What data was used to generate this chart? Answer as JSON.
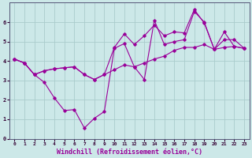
{
  "title": "",
  "xlabel": "Windchill (Refroidissement éolien,°C)",
  "ylabel": "",
  "bg_color": "#cce8e8",
  "line_color": "#990099",
  "grid_color": "#aacccc",
  "xlim": [
    -0.5,
    23.5
  ],
  "ylim": [
    0,
    7
  ],
  "xticks": [
    0,
    1,
    2,
    3,
    4,
    5,
    6,
    7,
    8,
    9,
    10,
    11,
    12,
    13,
    14,
    15,
    16,
    17,
    18,
    19,
    20,
    21,
    22,
    23
  ],
  "yticks": [
    0,
    1,
    2,
    3,
    4,
    5,
    6
  ],
  "line1_x": [
    0,
    1,
    2,
    3,
    4,
    5,
    6,
    7,
    8,
    9,
    10,
    11,
    12,
    13,
    14,
    15,
    16,
    17,
    18,
    19,
    20,
    21,
    22,
    23
  ],
  "line1_y": [
    4.1,
    3.9,
    3.3,
    3.5,
    3.6,
    3.65,
    3.7,
    3.3,
    3.05,
    3.3,
    3.55,
    3.8,
    3.7,
    3.9,
    4.1,
    4.25,
    4.55,
    4.7,
    4.7,
    4.85,
    4.6,
    4.7,
    4.75,
    4.65
  ],
  "line2_x": [
    0,
    1,
    2,
    3,
    4,
    5,
    6,
    7,
    8,
    9,
    10,
    11,
    12,
    13,
    14,
    15,
    16,
    17,
    18,
    19,
    20,
    21,
    22,
    23
  ],
  "line2_y": [
    4.1,
    3.9,
    3.3,
    2.9,
    2.1,
    1.45,
    1.5,
    0.55,
    1.05,
    1.4,
    4.65,
    4.9,
    3.7,
    3.05,
    6.1,
    4.85,
    5.0,
    5.1,
    6.55,
    6.0,
    4.6,
    5.1,
    5.1,
    4.65
  ],
  "line3_x": [
    0,
    1,
    2,
    3,
    4,
    5,
    6,
    7,
    8,
    9,
    10,
    11,
    12,
    13,
    14,
    15,
    16,
    17,
    18,
    19,
    20,
    21,
    22,
    23
  ],
  "line3_y": [
    4.1,
    3.9,
    3.3,
    3.5,
    3.6,
    3.65,
    3.7,
    3.3,
    3.05,
    3.3,
    4.7,
    5.4,
    4.85,
    5.3,
    5.85,
    5.3,
    5.5,
    5.45,
    6.65,
    5.95,
    4.6,
    5.5,
    4.75,
    4.65
  ],
  "tick_fontsize": 5,
  "xlabel_fontsize": 6,
  "marker": "D",
  "markersize": 1.8,
  "linewidth": 0.8
}
